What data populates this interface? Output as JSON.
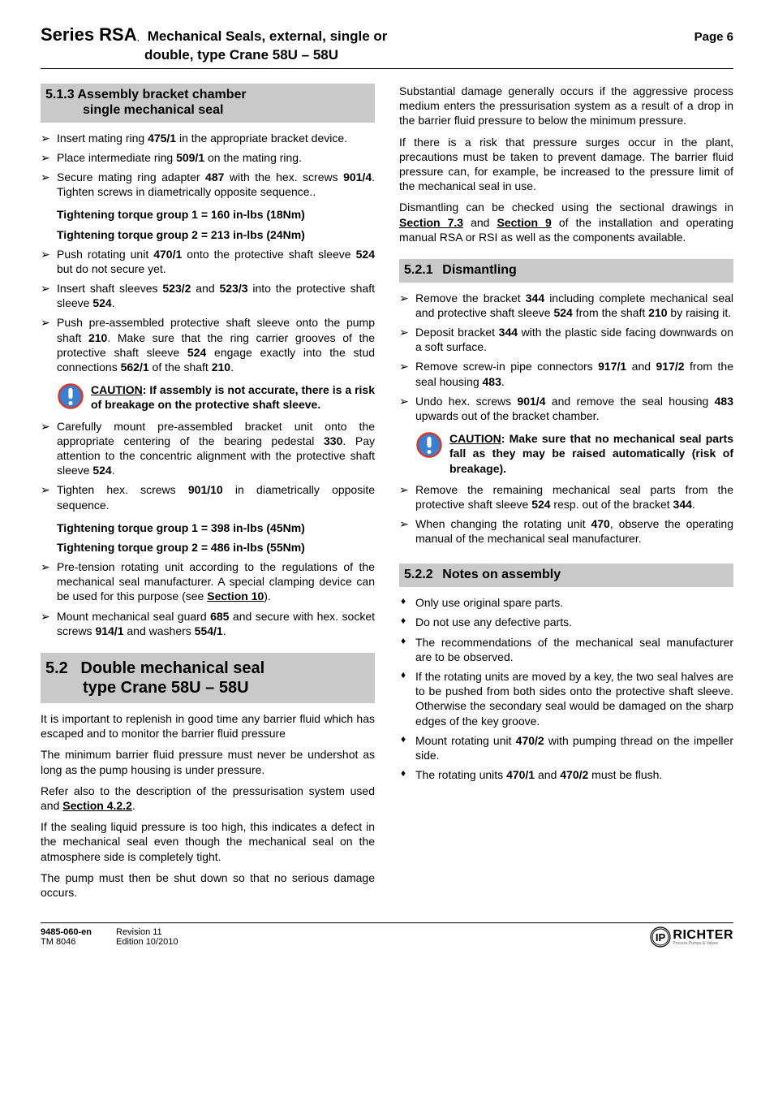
{
  "header": {
    "series": "Series RSA",
    "comma": ",",
    "title_line1": "Mechanical Seals, external, single or",
    "title_line2": "double, type Crane 58U – 58U",
    "page_label": "Page 6"
  },
  "left": {
    "s513": {
      "num": "5.1.3",
      "title_l1": "Assembly bracket chamber",
      "title_l2": "single mechanical seal"
    },
    "b1": "Insert mating ring <b>475/1</b> in the appropriate bracket device.",
    "b2": "Place intermediate ring <b>509/1</b> on the mating ring.",
    "b3": "Secure mating ring adapter <b>487</b> with the hex. screws <b>901/4</b>. Tighten screws in diametrically opposite sequence..",
    "torque1a": "Tightening torque group 1 = 160 in-lbs (18Nm)",
    "torque1b": "Tightening torque group 2 = 213 in-lbs (24Nm)",
    "b4": "Push rotating unit <b>470/1</b> onto the protective shaft sleeve <b>524</b> but do not secure yet.",
    "b5": "Insert shaft sleeves <b>523/2</b> and <b>523/3</b> into the protective shaft sleeve <b>524</b>.",
    "b6": "Push pre-assembled protective shaft sleeve onto the pump shaft <b>210</b>. Make sure that the ring carrier grooves of the protective shaft sleeve <b>524</b> engage exactly into the stud connections <b>562/1</b> of the shaft <b>210</b>.",
    "caution1": "<u>CAUTION</u>: If assembly is not accurate, there is a risk of breakage on the protective shaft sleeve.",
    "b7": "Carefully mount pre-assembled bracket unit onto the appropriate centering of the bearing pedestal <b>330</b>. Pay attention to the concentric alignment with the protective shaft sleeve <b>524</b>.",
    "b8": "Tighten hex. screws <b>901/10</b> in diametrically opposite sequence.",
    "torque2a": "Tightening torque group 1 = 398 in-lbs (45Nm)",
    "torque2b": "Tightening torque group 2 = 486 in-lbs (55Nm)",
    "b9": "Pre-tension rotating unit according to the regulations of the mechanical seal manufacturer. A special clamping device can be used for this purpose (see <b><u>Section 10</u></b>).",
    "b10": "Mount mechanical seal guard <b>685</b> and secure with hex. socket screws <b>914/1</b> and washers <b>554/1</b>.",
    "s52": {
      "num": "5.2",
      "title_l1": "Double mechanical seal",
      "title_l2": "type Crane 58U – 58U"
    },
    "p1": "It is important to replenish in good time any barrier fluid which has escaped and to monitor the barrier fluid pressure",
    "p2": "The minimum barrier fluid pressure must never be undershot as long as the pump housing is under pressure.",
    "p3": "Refer also to the description of the pressurisation system used and <b><u>Section 4.2.2</u></b>.",
    "p4": "If the sealing liquid pressure is too high, this indicates a defect in the mechanical seal even though the mechanical seal on the atmosphere side is completely tight.",
    "p5": "The pump must then be shut down so that no serious damage occurs."
  },
  "right": {
    "p1": "Substantial damage generally occurs if the aggressive process medium enters the pressurisation system as a result of a drop in the barrier fluid pressure to below the minimum pressure.",
    "p2": "If there is a risk that pressure surges occur in the plant, precautions must be taken to prevent damage. The barrier fluid pressure can, for example, be increased to the pressure limit of the mechanical seal in use.",
    "p3": "Dismantling can be checked using the sectional drawings in <b><u>Section 7.3</u></b> and <b><u>Section 9</u></b> of the installation and operating manual RSA or RSI as well as the components available.",
    "s521": {
      "num": "5.2.1",
      "title": "Dismantling"
    },
    "b1": "Remove the bracket <b>344</b> including complete mechanical seal and protective shaft sleeve <b>524</b> from the shaft <b>210</b> by raising it.",
    "b2": "Deposit bracket <b>344</b> with the plastic side facing downwards on a soft surface.",
    "b3": "Remove screw-in pipe connectors <b>917/1</b> and <b>917/2</b> from the seal housing <b>483</b>.",
    "b4": "Undo hex. screws <b>901/4</b> and remove the seal housing <b>483</b> upwards out of the bracket chamber.",
    "caution2": "<u>CAUTION</u>: Make sure that no mechanical seal parts fall as they may be raised automatically (risk of breakage).",
    "b5": "Remove the remaining mechanical seal parts from the protective shaft sleeve <b>524</b> resp. out of the bracket <b>344</b>.",
    "b6": "When changing the rotating unit <b>470</b>, observe the operating manual of the mechanical seal manufacturer.",
    "s522": {
      "num": "5.2.2",
      "title": "Notes on assembly"
    },
    "d1": "Only use original spare parts.",
    "d2": "Do not use any defective parts.",
    "d3": "The recommendations of the mechanical seal manufacturer are to be observed.",
    "d4": "If the rotating units are moved by a key, the two seal halves are to be pushed from both sides onto the protective shaft sleeve. Otherwise the secondary seal would be damaged on the sharp edges of the key groove.",
    "d5": "Mount rotating unit <b>470/2</b> with pumping thread on the impeller side.",
    "d6": "The rotating units <b>470/1</b> and <b>470/2</b> must be flush."
  },
  "footer": {
    "doc1": "9485-060-en",
    "doc2": "TM 8046",
    "rev1": "Revision   11",
    "rev2": "Edition   10/2010",
    "brand": "RICHTER",
    "tag": "Process Pumps & Valves"
  },
  "colors": {
    "band": "#c9c9c9",
    "icon_fill": "#3b7fd1",
    "icon_fill2": "#d33a2f",
    "text": "#000000"
  }
}
